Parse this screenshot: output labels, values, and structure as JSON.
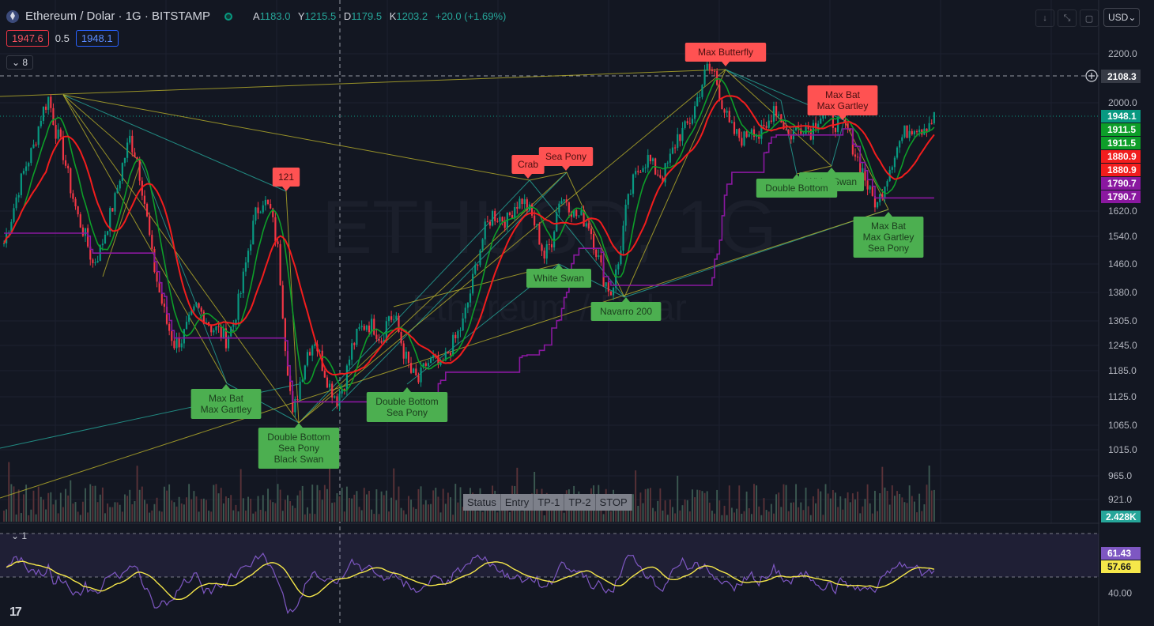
{
  "header": {
    "symbol": "Ethereum / Dolar · 1G · BITSTAMP",
    "ohlc": [
      {
        "k": "A",
        "v": "1183.0"
      },
      {
        "k": "Y",
        "v": "1215.5"
      },
      {
        "k": "D",
        "v": "1179.5"
      },
      {
        "k": "K",
        "v": "1203.2"
      }
    ],
    "change": "+20.0 (+1.69%)"
  },
  "quote": {
    "bid": "1947.6",
    "spread": "0.5",
    "ask": "1948.1"
  },
  "indicator_toggle_main": "8",
  "indicator_toggle_rsi": "1",
  "currency": "USD",
  "top_buttons": [
    "↓",
    "⤡",
    "▢"
  ],
  "tv_logo": "17",
  "status_table": [
    "Status",
    "Entry",
    "TP-1",
    "TP-2",
    "STOP"
  ],
  "watermark": {
    "line1": "ETHUSD, 1G",
    "line2": "Ethereum / Dolar"
  },
  "chart_data": {
    "type": "candlestick",
    "symbol": "ETHUSD",
    "timeframe": "1G",
    "price_axis_ticks": [
      "2200.0",
      "2000.0",
      "1620.0",
      "1540.0",
      "1460.0",
      "1380.0",
      "1305.0",
      "1245.0",
      "1185.0",
      "1125.0",
      "1065.0",
      "1015.0",
      "965.0",
      "921.0"
    ],
    "rsi_axis_ticks": [
      "40.00"
    ],
    "crosshair_price": "2108.3",
    "price_badges": [
      {
        "value": "1948.1",
        "color": "#089981"
      },
      {
        "value": "1911.5",
        "color": "#0d9e29"
      },
      {
        "value": "1911.5",
        "color": "#0d9e29"
      },
      {
        "value": "1880.9",
        "color": "#f21d1d"
      },
      {
        "value": "1880.9",
        "color": "#f21d1d"
      },
      {
        "value": "1790.7",
        "color": "#8a18a0"
      },
      {
        "value": "1790.7",
        "color": "#8a18a0"
      }
    ],
    "volume_badge": "2.428K",
    "rsi_badges": [
      {
        "value": "61.43",
        "color": "#7e57c2"
      },
      {
        "value": "57.66",
        "color": "#f5e74a"
      }
    ],
    "close_path": [
      1520,
      1600,
      1700,
      1780,
      1840,
      1950,
      2020,
      1900,
      1820,
      1700,
      1600,
      1540,
      1460,
      1500,
      1580,
      1660,
      1780,
      1870,
      1800,
      1650,
      1480,
      1380,
      1300,
      1250,
      1260,
      1300,
      1340,
      1320,
      1290,
      1280,
      1260,
      1300,
      1380,
      1500,
      1610,
      1660,
      1620,
      1500,
      1250,
      1080,
      1160,
      1230,
      1260,
      1200,
      1150,
      1120,
      1160,
      1240,
      1280,
      1300,
      1290,
      1260,
      1320,
      1300,
      1230,
      1180,
      1160,
      1200,
      1210,
      1190,
      1230,
      1260,
      1300,
      1380,
      1480,
      1560,
      1610,
      1600,
      1590,
      1640,
      1660,
      1620,
      1560,
      1480,
      1530,
      1660,
      1660,
      1610,
      1600,
      1580,
      1500,
      1420,
      1380,
      1460,
      1620,
      1720,
      1780,
      1800,
      1760,
      1740,
      1800,
      1880,
      1900,
      1950,
      2050,
      2140,
      2120,
      2000,
      1910,
      1880,
      1870,
      1920,
      1880,
      1900,
      1990,
      1940,
      1880,
      1900,
      1920,
      1900,
      1950,
      1960,
      1930,
      1920,
      1900,
      1820,
      1760,
      1680,
      1640,
      1720,
      1800,
      1860,
      1900,
      1920,
      1910,
      1930,
      1948
    ],
    "patterns_bearish": [
      {
        "label": "121",
        "price": 1670
      },
      {
        "label": "Crab",
        "price": 1730
      },
      {
        "label": "Sea Pony",
        "price": 1745
      },
      {
        "label": "Max Butterfly",
        "price": 2140
      },
      {
        "label": "Max Bat\nMax Gartley",
        "price": 1960
      }
    ],
    "patterns_bullish": [
      {
        "label": "Max Bat\nMax Gartley",
        "price": 1150
      },
      {
        "label": "Double Bottom\nSea Pony\nBlack Swan",
        "price": 1070
      },
      {
        "label": "Double Bottom\nSea Pony",
        "price": 1150
      },
      {
        "label": "White Swan",
        "price": 1470
      },
      {
        "label": "Navarro 200",
        "price": 1380
      },
      {
        "label": "White Swan",
        "price": 1820
      },
      {
        "label": "Double Bottom",
        "price": 1840
      },
      {
        "label": "Max Bat\nMax Gartley\nSea Pony",
        "price": 1620
      }
    ]
  }
}
